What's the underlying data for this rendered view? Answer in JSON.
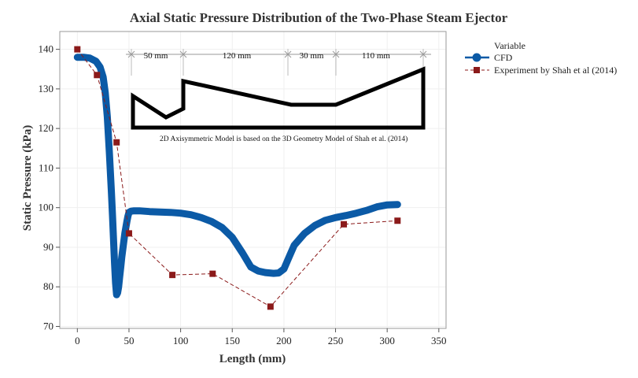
{
  "chart_data": {
    "type": "line",
    "title": "Axial Static Pressure Distribution of the Two-Phase Steam Ejector",
    "xlabel": "Length (mm)",
    "ylabel": "Static Pressure (kPa)",
    "xlim": [
      -17,
      357
    ],
    "ylim": [
      69.5,
      144.5
    ],
    "xticks": [
      0,
      50,
      100,
      150,
      200,
      250,
      300,
      350
    ],
    "yticks": [
      70,
      80,
      90,
      100,
      110,
      120,
      130,
      140
    ],
    "grid": true,
    "legend": {
      "title": "Variable",
      "position": "right",
      "entries": [
        "CFD",
        "Experiment by Shah et al (2014)"
      ]
    },
    "series": [
      {
        "name": "CFD",
        "style": "thick-solid",
        "color": "#0B5AA6",
        "x": [
          0,
          6,
          12,
          18,
          22,
          25,
          27,
          29,
          31,
          33,
          34,
          35,
          36,
          37,
          38,
          39,
          40,
          41,
          42,
          43,
          44,
          45,
          46,
          47,
          48,
          49,
          50,
          52,
          55,
          60,
          70,
          80,
          90,
          100,
          110,
          120,
          130,
          140,
          150,
          160,
          168,
          175,
          182,
          190,
          195,
          200,
          205,
          210,
          220,
          230,
          240,
          250,
          260,
          270,
          280,
          290,
          300,
          310
        ],
        "y": [
          138,
          138,
          137.8,
          137,
          135.5,
          133,
          129,
          123,
          114,
          104,
          98,
          92,
          86,
          81,
          78,
          78.5,
          80,
          82.5,
          85,
          87.5,
          89.5,
          91.5,
          93.5,
          95,
          96.5,
          97.8,
          98.8,
          99.1,
          99.2,
          99.2,
          99,
          98.9,
          98.8,
          98.6,
          98.2,
          97.5,
          96.5,
          95,
          92.5,
          88.5,
          85,
          84,
          83.6,
          83.4,
          83.5,
          84.5,
          87.5,
          90.5,
          93.5,
          95.5,
          96.8,
          97.5,
          98,
          98.6,
          99.3,
          100.2,
          100.7,
          100.8
        ]
      },
      {
        "name": "Experiment by Shah et al (2014)",
        "style": "dashed-square-markers",
        "color": "#8B1A1A",
        "x": [
          0,
          19,
          38,
          50,
          92,
          131,
          187,
          258,
          310
        ],
        "y": [
          140,
          133.5,
          116.5,
          93.5,
          83,
          83.3,
          75,
          95.8,
          96.7
        ]
      }
    ],
    "annotations": {
      "dimensions": [
        "50 mm",
        "120 mm",
        "30 mm",
        "110 mm"
      ],
      "note": "2D Axisymmetric Model is based on the 3D Geometry Model of Shah et al. (2014)"
    },
    "colors": {
      "cfd": "#0B5AA6",
      "experiment": "#8B1A1A",
      "grid": "#EFEFEF",
      "frame": "#9A9A9A"
    }
  }
}
